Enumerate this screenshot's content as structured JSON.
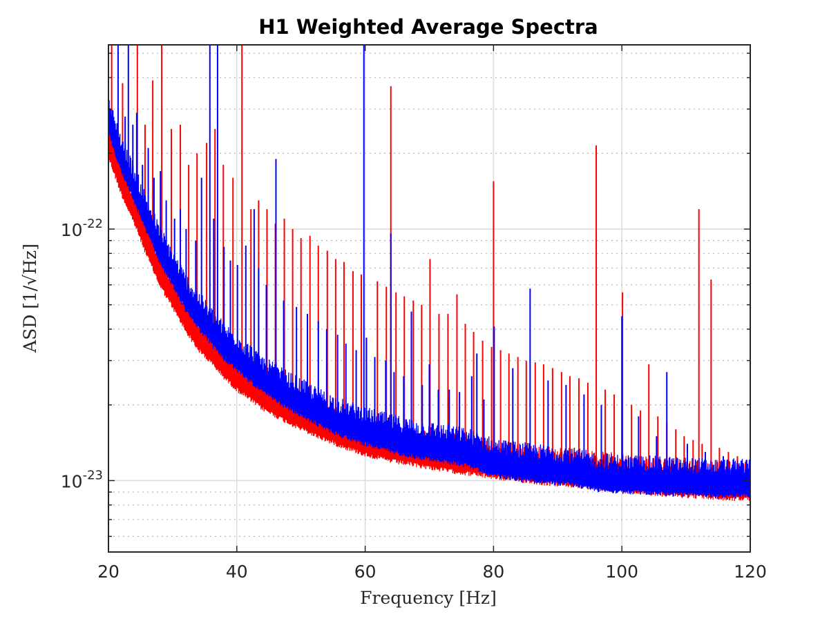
{
  "chart_data": {
    "type": "line",
    "title": "H1 Weighted Average Spectra",
    "xlabel": "Frequency [Hz]",
    "ylabel": "ASD [1/√Hz]",
    "xlim": [
      20,
      120
    ],
    "ylim": [
      5.2e-24,
      5.4e-22
    ],
    "yscale": "log",
    "grid": true,
    "legend": "none",
    "x_ticks": [
      20,
      40,
      60,
      80,
      100,
      120
    ],
    "x_tick_labels": [
      "20",
      "40",
      "60",
      "80",
      "100",
      "120"
    ],
    "y_ticks": [
      1e-23,
      1e-22
    ],
    "y_tick_labels": [
      {
        "base": "10",
        "exp": "-23"
      },
      {
        "base": "10",
        "exp": "-22"
      }
    ],
    "series": [
      {
        "color": "#ff0000",
        "floor": {
          "x": [
            20,
            22,
            24,
            26,
            28,
            30,
            32,
            34,
            36,
            38,
            40,
            44,
            48,
            52,
            56,
            60,
            64,
            68,
            72,
            76,
            80,
            84,
            88,
            92,
            96,
            100,
            104,
            108,
            112,
            116,
            120
          ],
          "y": [
            2.1e-22,
            1.5e-22,
            1.15e-22,
            8.5e-23,
            6.5e-23,
            5.3e-23,
            4.3e-23,
            3.6e-23,
            3.2e-23,
            2.8e-23,
            2.5e-23,
            2.1e-23,
            1.85e-23,
            1.65e-23,
            1.5e-23,
            1.38e-23,
            1.3e-23,
            1.25e-23,
            1.2e-23,
            1.16e-23,
            1.12e-23,
            1.09e-23,
            1.06e-23,
            1.04e-23,
            1.01e-23,
            9.9e-24,
            9.7e-24,
            9.5e-24,
            9.4e-24,
            9.2e-24,
            9.2e-24
          ]
        },
        "peaks": {
          "x": [
            20.5,
            22.2,
            24.5,
            25.7,
            26.9,
            28.3,
            29.8,
            31.2,
            32.5,
            33.8,
            35.3,
            36.6,
            37.9,
            39.4,
            40.8,
            42.2,
            43.4,
            44.7,
            46.0,
            47.4,
            48.7,
            50.0,
            51.4,
            52.7,
            54.1,
            55.4,
            56.7,
            58.1,
            59.4,
            61.9,
            63.3,
            64.0,
            64.8,
            66.1,
            67.5,
            68.8,
            70.1,
            71.5,
            72.9,
            74.3,
            75.6,
            76.9,
            78.3,
            79.7,
            80.0,
            81.1,
            82.4,
            83.8,
            85.1,
            86.5,
            87.8,
            89.2,
            90.6,
            91.9,
            93.3,
            94.7,
            96.0,
            97.4,
            98.8,
            100.1,
            101.5,
            102.9,
            104.2,
            105.6,
            107.0,
            108.4,
            109.7,
            111.1,
            112.0,
            112.5,
            113.9,
            115.2,
            116.6,
            118.0,
            119.4,
            120.0
          ],
          "y": [
            5.4e-22,
            3.8e-22,
            5.4e-22,
            2.6e-22,
            3.9e-22,
            5.4e-22,
            2.5e-22,
            2.6e-22,
            1.8e-22,
            2e-22,
            2.2e-22,
            2.5e-22,
            1.8e-22,
            1.6e-22,
            5.4e-22,
            1.2e-22,
            1.3e-22,
            1.2e-22,
            1.05e-22,
            1.1e-22,
            1e-22,
            9.2e-23,
            9.4e-23,
            8.6e-23,
            8.2e-23,
            7.6e-23,
            7.4e-23,
            6.8e-23,
            6.6e-23,
            6.2e-23,
            5.9e-23,
            3.7e-22,
            5.6e-23,
            5.4e-23,
            5.2e-23,
            5e-23,
            7.6e-23,
            4.6e-23,
            4.6e-23,
            5.5e-23,
            4.2e-23,
            3.9e-23,
            3.6e-23,
            3.4e-23,
            1.55e-22,
            3.3e-23,
            3.2e-23,
            3.1e-23,
            3e-23,
            2.95e-23,
            2.9e-23,
            2.8e-23,
            2.7e-23,
            2.6e-23,
            2.55e-23,
            2.45e-23,
            2.15e-22,
            2.3e-23,
            2.2e-23,
            5.6e-23,
            2e-23,
            1.9e-23,
            2.9e-23,
            1.8e-23,
            1.7e-23,
            1.6e-23,
            1.5e-23,
            1.45e-23,
            1.2e-22,
            1.4e-23,
            6.3e-23,
            1.35e-23,
            1.3e-23,
            1.25e-23,
            1.2e-23,
            1.1e-22
          ]
        }
      },
      {
        "color": "#0000ff",
        "floor": {
          "x": [
            20,
            22,
            24,
            26,
            28,
            30,
            32,
            34,
            36,
            38,
            40,
            44,
            48,
            52,
            56,
            60,
            64,
            68,
            72,
            76,
            80,
            84,
            88,
            92,
            96,
            100,
            104,
            108,
            112,
            116,
            120
          ],
          "y": [
            2.6e-22,
            1.85e-22,
            1.4e-22,
            1.05e-22,
            8e-23,
            6.5e-23,
            5.2e-23,
            4.4e-23,
            3.8e-23,
            3.3e-23,
            3e-23,
            2.45e-23,
            2.1e-23,
            1.85e-23,
            1.65e-23,
            1.52e-23,
            1.42e-23,
            1.35e-23,
            1.3e-23,
            1.25e-23,
            1.14e-23,
            1.1e-23,
            1.07e-23,
            1.05e-23,
            1e-23,
            9.8e-24,
            9.7e-24,
            9.6e-24,
            9.5e-24,
            9.4e-24,
            9.5e-24
          ]
        },
        "peaks": {
          "x": [
            20.3,
            21.5,
            22.6,
            23.1,
            23.8,
            24.4,
            25.3,
            26.2,
            27.1,
            28.1,
            29.0,
            30.3,
            31.2,
            32.1,
            33.6,
            34.5,
            35.8,
            36.4,
            37.0,
            38.0,
            39.0,
            40.1,
            41.4,
            42.7,
            43.4,
            44.6,
            46.1,
            47.3,
            49.3,
            51.0,
            52.7,
            54.0,
            55.7,
            57.0,
            58.6,
            59.8,
            60.2,
            61.5,
            63.2,
            64.0,
            64.5,
            66.0,
            67.2,
            68.9,
            70.0,
            71.4,
            73.1,
            74.7,
            76.6,
            77.4,
            78.5,
            80.1,
            83.0,
            85.7,
            88.5,
            91.3,
            94.1,
            96.8,
            100.0,
            102.6,
            105.4,
            107.0,
            110.2,
            113.0,
            115.8,
            118.6,
            120.0
          ],
          "y": [
            3e-22,
            5.4e-22,
            2.8e-22,
            5.4e-22,
            2.6e-22,
            2.9e-22,
            1.8e-22,
            2.1e-22,
            1.6e-22,
            1.7e-22,
            1.3e-22,
            1.1e-22,
            1.2e-22,
            1e-22,
            9e-23,
            1.6e-22,
            5.4e-22,
            1.1e-22,
            5.4e-22,
            8.5e-23,
            7.5e-23,
            7.2e-23,
            8.6e-23,
            1.2e-22,
            7e-23,
            6e-23,
            1.9e-22,
            5.2e-23,
            4.9e-23,
            4.6e-23,
            4.3e-23,
            4e-23,
            3.8e-23,
            3.5e-23,
            3.3e-23,
            5.4e-22,
            3.7e-23,
            3.1e-23,
            3e-23,
            9.6e-23,
            2.7e-23,
            2.6e-23,
            4.7e-23,
            2.4e-23,
            2.9e-23,
            2.3e-23,
            2.3e-23,
            2.25e-23,
            2.6e-23,
            3.2e-23,
            2.1e-23,
            4.1e-23,
            2.8e-23,
            5.8e-23,
            2.5e-23,
            2.4e-23,
            2.2e-23,
            2e-23,
            4.5e-23,
            1.8e-23,
            1.5e-23,
            2.7e-23,
            1.4e-23,
            1.3e-23,
            1.25e-23,
            1.2e-23,
            4.4e-23
          ]
        }
      }
    ]
  }
}
